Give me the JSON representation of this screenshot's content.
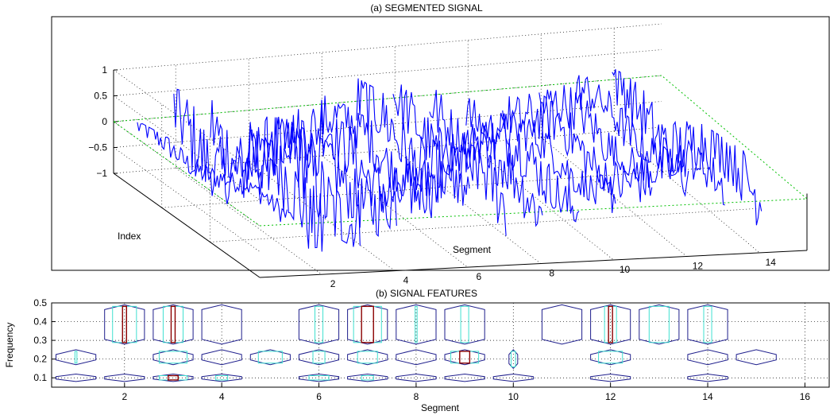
{
  "chart_data": [
    {
      "type": "line",
      "title": "(a) SEGMENTED SIGNAL",
      "xlabel": "Segment",
      "ylabel": "Index",
      "zlabel": "",
      "x_ticks": [
        "2",
        "4",
        "6",
        "8",
        "10",
        "12",
        "14"
      ],
      "z_ticks": [
        "1",
        "0.5",
        "0",
        "−0.5",
        "−1"
      ],
      "zlim": [
        -1,
        1
      ],
      "grid": true,
      "line_color": "#0000ff",
      "zero_plane_color": "#00c000",
      "segments": [
        {
          "segment": 1,
          "amplitude_range": [
            -0.3,
            0.2
          ]
        },
        {
          "segment": 2,
          "amplitude_range": [
            -0.9,
            0.8
          ]
        },
        {
          "segment": 3,
          "amplitude_range": [
            -0.8,
            0.9
          ]
        },
        {
          "segment": 4,
          "amplitude_range": [
            -0.8,
            0.5
          ]
        },
        {
          "segment": 5,
          "amplitude_range": [
            -0.7,
            0.6
          ]
        },
        {
          "segment": 6,
          "amplitude_range": [
            -0.6,
            0.5
          ]
        },
        {
          "segment": 7,
          "amplitude_range": [
            -0.8,
            0.7
          ]
        },
        {
          "segment": 8,
          "amplitude_range": [
            -0.6,
            0.6
          ]
        },
        {
          "segment": 9,
          "amplitude_range": [
            -0.5,
            0.7
          ]
        },
        {
          "segment": 10,
          "amplitude_range": [
            -0.4,
            0.5
          ]
        },
        {
          "segment": 11,
          "amplitude_range": [
            -0.5,
            0.6
          ]
        },
        {
          "segment": 12,
          "amplitude_range": [
            -0.4,
            0.6
          ]
        },
        {
          "segment": 13,
          "amplitude_range": [
            -0.4,
            0.5
          ]
        },
        {
          "segment": 14,
          "amplitude_range": [
            -0.8,
            0.5
          ]
        }
      ]
    },
    {
      "type": "scatter",
      "title": "(b) SIGNAL FEATURES",
      "xlabel": "Segment",
      "ylabel": "Frequency",
      "xlim": [
        0.5,
        16.5
      ],
      "ylim": [
        0.05,
        0.5
      ],
      "x_ticks": [
        "2",
        "4",
        "6",
        "8",
        "10",
        "12",
        "14",
        "16"
      ],
      "y_ticks": [
        "0.1",
        "0.2",
        "0.3",
        "0.4",
        "0.5"
      ],
      "grid": true,
      "colors": {
        "outline": "#1e1e8c",
        "inner": "#40e0d0",
        "peak": "#8b0000"
      },
      "features": [
        {
          "segment": 1,
          "f_low": 0.17,
          "f_high": 0.25,
          "inner_width": 0.05
        },
        {
          "segment": 1,
          "f_low": 0.08,
          "f_high": 0.12
        },
        {
          "segment": 2,
          "f_low": 0.28,
          "f_high": 0.49,
          "inner_width": 0.6,
          "peak_width": 0.1
        },
        {
          "segment": 2,
          "f_low": 0.08,
          "f_high": 0.12
        },
        {
          "segment": 3,
          "f_low": 0.28,
          "f_high": 0.49,
          "inner_width": 0.5,
          "peak_width": 0.1
        },
        {
          "segment": 3,
          "f_low": 0.17,
          "f_high": 0.25,
          "inner_width": 0.7
        },
        {
          "segment": 3,
          "f_low": 0.08,
          "f_high": 0.12,
          "inner_width": 0.7,
          "peak_width": 0.25
        },
        {
          "segment": 4,
          "f_low": 0.28,
          "f_high": 0.49
        },
        {
          "segment": 4,
          "f_low": 0.17,
          "f_high": 0.25
        },
        {
          "segment": 4,
          "f_low": 0.08,
          "f_high": 0.12,
          "inner_width": 0.3
        },
        {
          "segment": 5,
          "f_low": 0.17,
          "f_high": 0.25,
          "inner_width": 0.6
        },
        {
          "segment": 6,
          "f_low": 0.28,
          "f_high": 0.49,
          "inner_width": 0.2
        },
        {
          "segment": 6,
          "f_low": 0.17,
          "f_high": 0.25,
          "inner_width": 0.3
        },
        {
          "segment": 6,
          "f_low": 0.08,
          "f_high": 0.12,
          "inner_width": 0.5
        },
        {
          "segment": 7,
          "f_low": 0.28,
          "f_high": 0.49,
          "inner_width": 0.7,
          "peak_width": 0.3
        },
        {
          "segment": 7,
          "f_low": 0.17,
          "f_high": 0.25,
          "inner_width": 0.5
        },
        {
          "segment": 7,
          "f_low": 0.08,
          "f_high": 0.12,
          "inner_width": 0.3
        },
        {
          "segment": 8,
          "f_low": 0.28,
          "f_high": 0.49,
          "inner_width": 0.05
        },
        {
          "segment": 8,
          "f_low": 0.17,
          "f_high": 0.25
        },
        {
          "segment": 8,
          "f_low": 0.08,
          "f_high": 0.12
        },
        {
          "segment": 9,
          "f_low": 0.28,
          "f_high": 0.49,
          "inner_width": 0.2
        },
        {
          "segment": 9,
          "f_low": 0.17,
          "f_high": 0.25,
          "inner_width": 0.7,
          "peak_width": 0.25
        },
        {
          "segment": 9,
          "f_low": 0.08,
          "f_high": 0.12
        },
        {
          "segment": 10,
          "f_low": 0.15,
          "f_high": 0.25,
          "width": 0.18,
          "inner_width": 0.5
        },
        {
          "segment": 10,
          "f_low": 0.08,
          "f_high": 0.12
        },
        {
          "segment": 11,
          "f_low": 0.28,
          "f_high": 0.49
        },
        {
          "segment": 12,
          "f_low": 0.28,
          "f_high": 0.49,
          "inner_width": 0.3,
          "peak_width": 0.1
        },
        {
          "segment": 12,
          "f_low": 0.17,
          "f_high": 0.25,
          "inner_width": 0.6
        },
        {
          "segment": 12,
          "f_low": 0.08,
          "f_high": 0.12
        },
        {
          "segment": 13,
          "f_low": 0.28,
          "f_high": 0.49,
          "inner_width": 0.5
        },
        {
          "segment": 14,
          "f_low": 0.28,
          "f_high": 0.49,
          "inner_width": 0.2
        },
        {
          "segment": 14,
          "f_low": 0.17,
          "f_high": 0.25
        },
        {
          "segment": 14,
          "f_low": 0.08,
          "f_high": 0.12
        },
        {
          "segment": 15,
          "f_low": 0.17,
          "f_high": 0.25
        }
      ]
    }
  ]
}
